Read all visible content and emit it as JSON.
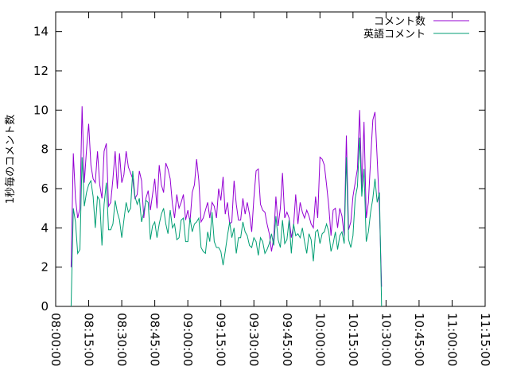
{
  "chart_data": {
    "type": "line",
    "title": "",
    "xlabel": "",
    "ylabel": "1秒毎のコメント数",
    "ylim": [
      0,
      15
    ],
    "y_ticks": [
      0,
      2,
      4,
      6,
      8,
      10,
      12,
      14
    ],
    "x_range": [
      "08:00:00",
      "11:15:00"
    ],
    "x_ticks": [
      "08:00:00",
      "08:15:00",
      "08:30:00",
      "08:45:00",
      "09:00:00",
      "09:15:00",
      "09:30:00",
      "09:45:00",
      "10:00:00",
      "10:15:00",
      "10:30:00",
      "10:45:00",
      "11:00:00",
      "11:15:00"
    ],
    "x_tick_label_rotation": "vertical",
    "grid": false,
    "legend_position": "top-right",
    "series": [
      {
        "name": "コメント数",
        "color": "#9400d3",
        "points": [
          [
            "08:07:00",
            2.0
          ],
          [
            "08:08:00",
            7.8
          ],
          [
            "08:09:00",
            5.5
          ],
          [
            "08:10:00",
            4.5
          ],
          [
            "08:11:00",
            5.0
          ],
          [
            "08:12:00",
            10.2
          ],
          [
            "08:13:00",
            6.3
          ],
          [
            "08:14:00",
            8.0
          ],
          [
            "08:15:00",
            9.3
          ],
          [
            "08:16:00",
            7.2
          ],
          [
            "08:17:00",
            6.5
          ],
          [
            "08:18:00",
            6.3
          ],
          [
            "08:19:00",
            7.9
          ],
          [
            "08:20:00",
            6.2
          ],
          [
            "08:21:00",
            5.5
          ],
          [
            "08:22:00",
            7.9
          ],
          [
            "08:23:00",
            8.3
          ],
          [
            "08:24:00",
            5.1
          ],
          [
            "08:25:00",
            5.3
          ],
          [
            "08:26:00",
            6.5
          ],
          [
            "08:27:00",
            7.9
          ],
          [
            "08:28:00",
            6.0
          ],
          [
            "08:29:00",
            7.8
          ],
          [
            "08:30:00",
            6.3
          ],
          [
            "08:31:00",
            6.7
          ],
          [
            "08:32:00",
            7.9
          ],
          [
            "08:33:00",
            7.1
          ],
          [
            "08:34:00",
            6.8
          ],
          [
            "08:35:00",
            6.5
          ],
          [
            "08:36:00",
            5.5
          ],
          [
            "08:37:00",
            5.7
          ],
          [
            "08:38:00",
            6.9
          ],
          [
            "08:39:00",
            6.4
          ],
          [
            "08:40:00",
            4.5
          ],
          [
            "08:41:00",
            5.5
          ],
          [
            "08:42:00",
            5.9
          ],
          [
            "08:43:00",
            4.9
          ],
          [
            "08:44:00",
            5.7
          ],
          [
            "08:45:00",
            6.5
          ],
          [
            "08:46:00",
            5.0
          ],
          [
            "08:47:00",
            7.2
          ],
          [
            "08:48:00",
            6.2
          ],
          [
            "08:49:00",
            5.8
          ],
          [
            "08:50:00",
            7.3
          ],
          [
            "08:51:00",
            7.0
          ],
          [
            "08:52:00",
            6.5
          ],
          [
            "08:53:00",
            5.2
          ],
          [
            "08:54:00",
            4.5
          ],
          [
            "08:55:00",
            5.7
          ],
          [
            "08:56:00",
            5.0
          ],
          [
            "08:57:00",
            5.3
          ],
          [
            "08:58:00",
            5.7
          ],
          [
            "08:59:00",
            4.4
          ],
          [
            "09:00:00",
            4.9
          ],
          [
            "09:01:00",
            4.3
          ],
          [
            "09:02:00",
            5.8
          ],
          [
            "09:03:00",
            6.2
          ],
          [
            "09:04:00",
            7.5
          ],
          [
            "09:05:00",
            6.4
          ],
          [
            "09:06:00",
            4.3
          ],
          [
            "09:07:00",
            4.5
          ],
          [
            "09:08:00",
            4.9
          ],
          [
            "09:09:00",
            5.3
          ],
          [
            "09:10:00",
            4.5
          ],
          [
            "09:11:00",
            5.3
          ],
          [
            "09:12:00",
            5.1
          ],
          [
            "09:13:00",
            4.5
          ],
          [
            "09:14:00",
            6.0
          ],
          [
            "09:15:00",
            5.4
          ],
          [
            "09:16:00",
            6.6
          ],
          [
            "09:17:00",
            4.7
          ],
          [
            "09:18:00",
            5.3
          ],
          [
            "09:19:00",
            4.2
          ],
          [
            "09:20:00",
            4.3
          ],
          [
            "09:21:00",
            6.4
          ],
          [
            "09:22:00",
            5.2
          ],
          [
            "09:23:00",
            4.4
          ],
          [
            "09:24:00",
            4.4
          ],
          [
            "09:25:00",
            5.5
          ],
          [
            "09:26:00",
            4.7
          ],
          [
            "09:27:00",
            5.3
          ],
          [
            "09:28:00",
            4.7
          ],
          [
            "09:29:00",
            3.8
          ],
          [
            "09:30:00",
            5.5
          ],
          [
            "09:31:00",
            6.9
          ],
          [
            "09:32:00",
            7.0
          ],
          [
            "09:33:00",
            5.2
          ],
          [
            "09:34:00",
            4.9
          ],
          [
            "09:35:00",
            4.8
          ],
          [
            "09:36:00",
            4.2
          ],
          [
            "09:37:00",
            3.7
          ],
          [
            "09:38:00",
            2.8
          ],
          [
            "09:39:00",
            3.5
          ],
          [
            "09:40:00",
            5.6
          ],
          [
            "09:41:00",
            4.1
          ],
          [
            "09:42:00",
            5.0
          ],
          [
            "09:43:00",
            6.8
          ],
          [
            "09:44:00",
            4.5
          ],
          [
            "09:45:00",
            4.8
          ],
          [
            "09:46:00",
            4.5
          ],
          [
            "09:47:00",
            3.5
          ],
          [
            "09:48:00",
            4.1
          ],
          [
            "09:49:00",
            5.7
          ],
          [
            "09:50:00",
            4.2
          ],
          [
            "09:51:00",
            5.3
          ],
          [
            "09:52:00",
            4.8
          ],
          [
            "09:53:00",
            4.5
          ],
          [
            "09:54:00",
            4.9
          ],
          [
            "09:55:00",
            4.6
          ],
          [
            "09:56:00",
            4.2
          ],
          [
            "09:57:00",
            4.0
          ],
          [
            "09:58:00",
            5.6
          ],
          [
            "09:59:00",
            4.5
          ],
          [
            "10:00:00",
            7.6
          ],
          [
            "10:01:00",
            7.5
          ],
          [
            "10:02:00",
            7.2
          ],
          [
            "10:03:00",
            6.2
          ],
          [
            "10:04:00",
            5.1
          ],
          [
            "10:05:00",
            3.6
          ],
          [
            "10:06:00",
            4.9
          ],
          [
            "10:07:00",
            5.0
          ],
          [
            "10:08:00",
            4.0
          ],
          [
            "10:09:00",
            5.0
          ],
          [
            "10:10:00",
            4.6
          ],
          [
            "10:11:00",
            3.6
          ],
          [
            "10:12:00",
            8.7
          ],
          [
            "10:13:00",
            3.9
          ],
          [
            "10:14:00",
            4.3
          ],
          [
            "10:15:00",
            5.6
          ],
          [
            "10:16:00",
            6.3
          ],
          [
            "10:17:00",
            7.0
          ],
          [
            "10:18:00",
            10.0
          ],
          [
            "10:19:00",
            6.0
          ],
          [
            "10:20:00",
            9.4
          ],
          [
            "10:21:00",
            4.5
          ],
          [
            "10:22:00",
            5.3
          ],
          [
            "10:23:00",
            7.5
          ],
          [
            "10:24:00",
            9.5
          ],
          [
            "10:25:00",
            9.9
          ],
          [
            "10:26:00",
            7.5
          ],
          [
            "10:27:00",
            5.0
          ],
          [
            "10:28:00",
            1.0
          ]
        ]
      },
      {
        "name": "英語コメント",
        "color": "#009e73",
        "points": [
          [
            "08:07:00",
            0.0
          ],
          [
            "08:08:00",
            5.0
          ],
          [
            "08:09:00",
            4.3
          ],
          [
            "08:10:00",
            2.7
          ],
          [
            "08:11:00",
            2.9
          ],
          [
            "08:12:00",
            7.6
          ],
          [
            "08:13:00",
            5.1
          ],
          [
            "08:14:00",
            5.8
          ],
          [
            "08:15:00",
            6.2
          ],
          [
            "08:16:00",
            6.4
          ],
          [
            "08:17:00",
            5.6
          ],
          [
            "08:18:00",
            4.0
          ],
          [
            "08:19:00",
            5.6
          ],
          [
            "08:20:00",
            5.4
          ],
          [
            "08:21:00",
            3.1
          ],
          [
            "08:22:00",
            5.2
          ],
          [
            "08:23:00",
            6.3
          ],
          [
            "08:24:00",
            3.9
          ],
          [
            "08:25:00",
            3.9
          ],
          [
            "08:26:00",
            4.2
          ],
          [
            "08:27:00",
            5.4
          ],
          [
            "08:28:00",
            4.8
          ],
          [
            "08:29:00",
            4.4
          ],
          [
            "08:30:00",
            3.5
          ],
          [
            "08:31:00",
            4.4
          ],
          [
            "08:32:00",
            5.3
          ],
          [
            "08:33:00",
            4.8
          ],
          [
            "08:34:00",
            5.0
          ],
          [
            "08:35:00",
            6.9
          ],
          [
            "08:36:00",
            5.6
          ],
          [
            "08:37:00",
            5.2
          ],
          [
            "08:38:00",
            5.5
          ],
          [
            "08:39:00",
            4.3
          ],
          [
            "08:40:00",
            4.8
          ],
          [
            "08:41:00",
            5.4
          ],
          [
            "08:42:00",
            5.3
          ],
          [
            "08:43:00",
            3.4
          ],
          [
            "08:44:00",
            4.1
          ],
          [
            "08:45:00",
            4.3
          ],
          [
            "08:46:00",
            3.5
          ],
          [
            "08:47:00",
            4.2
          ],
          [
            "08:48:00",
            4.7
          ],
          [
            "08:49:00",
            5.0
          ],
          [
            "08:50:00",
            4.2
          ],
          [
            "08:51:00",
            3.7
          ],
          [
            "08:52:00",
            4.9
          ],
          [
            "08:53:00",
            4.0
          ],
          [
            "08:54:00",
            4.2
          ],
          [
            "08:55:00",
            3.4
          ],
          [
            "08:56:00",
            3.5
          ],
          [
            "08:57:00",
            4.4
          ],
          [
            "08:58:00",
            4.5
          ],
          [
            "08:59:00",
            3.3
          ],
          [
            "09:00:00",
            3.3
          ],
          [
            "09:01:00",
            4.5
          ],
          [
            "09:02:00",
            3.8
          ],
          [
            "09:03:00",
            4.2
          ],
          [
            "09:04:00",
            4.3
          ],
          [
            "09:05:00",
            4.5
          ],
          [
            "09:06:00",
            3.0
          ],
          [
            "09:07:00",
            2.8
          ],
          [
            "09:08:00",
            2.7
          ],
          [
            "09:09:00",
            3.8
          ],
          [
            "09:10:00",
            3.3
          ],
          [
            "09:11:00",
            4.8
          ],
          [
            "09:12:00",
            3.3
          ],
          [
            "09:13:00",
            3.0
          ],
          [
            "09:14:00",
            3.0
          ],
          [
            "09:15:00",
            2.8
          ],
          [
            "09:16:00",
            2.1
          ],
          [
            "09:17:00",
            2.8
          ],
          [
            "09:18:00",
            3.6
          ],
          [
            "09:19:00",
            4.3
          ],
          [
            "09:20:00",
            3.5
          ],
          [
            "09:21:00",
            4.0
          ],
          [
            "09:22:00",
            2.7
          ],
          [
            "09:23:00",
            3.5
          ],
          [
            "09:24:00",
            3.5
          ],
          [
            "09:25:00",
            4.3
          ],
          [
            "09:26:00",
            3.8
          ],
          [
            "09:27:00",
            3.6
          ],
          [
            "09:28:00",
            3.1
          ],
          [
            "09:29:00",
            3.0
          ],
          [
            "09:30:00",
            3.5
          ],
          [
            "09:31:00",
            3.3
          ],
          [
            "09:32:00",
            2.6
          ],
          [
            "09:33:00",
            3.5
          ],
          [
            "09:34:00",
            3.3
          ],
          [
            "09:35:00",
            2.7
          ],
          [
            "09:36:00",
            2.9
          ],
          [
            "09:37:00",
            3.2
          ],
          [
            "09:38:00",
            3.7
          ],
          [
            "09:39:00",
            3.1
          ],
          [
            "09:40:00",
            4.6
          ],
          [
            "09:41:00",
            3.4
          ],
          [
            "09:42:00",
            3.0
          ],
          [
            "09:43:00",
            4.4
          ],
          [
            "09:44:00",
            3.2
          ],
          [
            "09:45:00",
            3.4
          ],
          [
            "09:46:00",
            4.4
          ],
          [
            "09:47:00",
            2.7
          ],
          [
            "09:48:00",
            4.2
          ],
          [
            "09:49:00",
            3.6
          ],
          [
            "09:50:00",
            3.7
          ],
          [
            "09:51:00",
            3.5
          ],
          [
            "09:52:00",
            4.0
          ],
          [
            "09:53:00",
            3.3
          ],
          [
            "09:54:00",
            2.7
          ],
          [
            "09:55:00",
            3.7
          ],
          [
            "09:56:00",
            3.4
          ],
          [
            "09:57:00",
            2.3
          ],
          [
            "09:58:00",
            3.8
          ],
          [
            "09:59:00",
            3.9
          ],
          [
            "10:00:00",
            3.2
          ],
          [
            "10:01:00",
            3.7
          ],
          [
            "10:02:00",
            3.8
          ],
          [
            "10:03:00",
            4.2
          ],
          [
            "10:04:00",
            3.8
          ],
          [
            "10:05:00",
            2.8
          ],
          [
            "10:06:00",
            3.2
          ],
          [
            "10:07:00",
            3.8
          ],
          [
            "10:08:00",
            2.9
          ],
          [
            "10:09:00",
            3.6
          ],
          [
            "10:10:00",
            3.8
          ],
          [
            "10:11:00",
            3.2
          ],
          [
            "10:12:00",
            7.6
          ],
          [
            "10:13:00",
            3.4
          ],
          [
            "10:14:00",
            3.0
          ],
          [
            "10:15:00",
            3.6
          ],
          [
            "10:16:00",
            5.5
          ],
          [
            "10:17:00",
            6.1
          ],
          [
            "10:18:00",
            8.6
          ],
          [
            "10:19:00",
            5.6
          ],
          [
            "10:20:00",
            7.0
          ],
          [
            "10:21:00",
            3.3
          ],
          [
            "10:22:00",
            3.8
          ],
          [
            "10:23:00",
            4.8
          ],
          [
            "10:24:00",
            5.5
          ],
          [
            "10:25:00",
            6.5
          ],
          [
            "10:26:00",
            5.3
          ],
          [
            "10:27:00",
            5.8
          ],
          [
            "10:28:00",
            0.0
          ]
        ]
      }
    ]
  }
}
